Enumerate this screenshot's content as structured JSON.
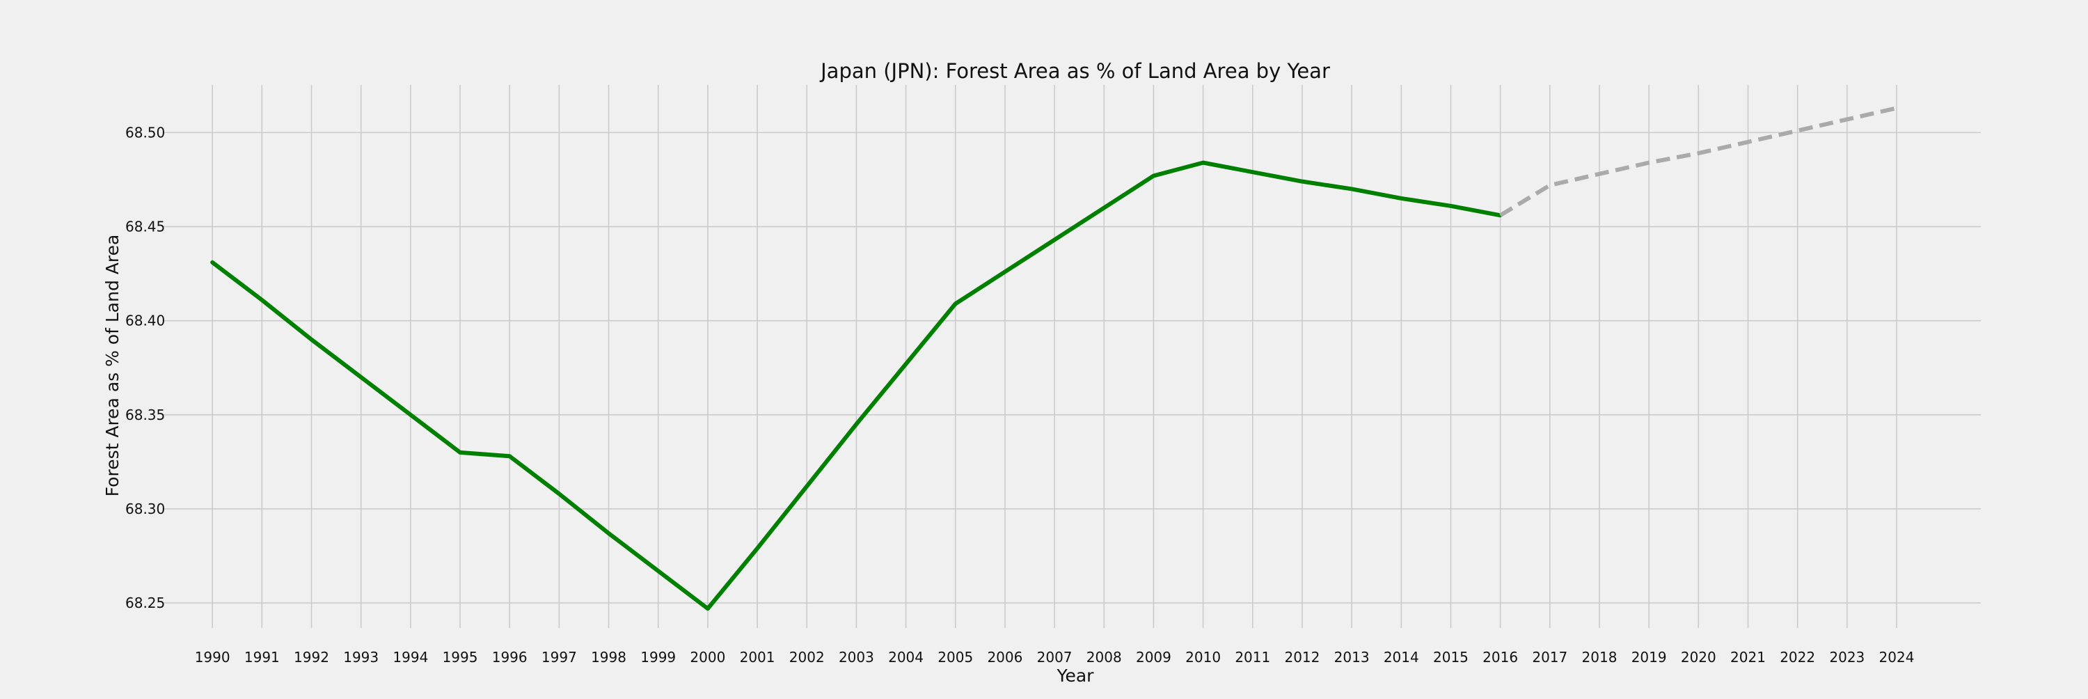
{
  "chart_data": {
    "type": "line",
    "title": "Japan (JPN): Forest Area as % of Land Area by Year",
    "xlabel": "Year",
    "ylabel": "Forest Area as % of Land Area",
    "x": [
      1990,
      1991,
      1992,
      1993,
      1994,
      1995,
      1996,
      1997,
      1998,
      1999,
      2000,
      2001,
      2002,
      2003,
      2004,
      2005,
      2006,
      2007,
      2008,
      2009,
      2010,
      2011,
      2012,
      2013,
      2014,
      2015,
      2016,
      2017,
      2018,
      2019,
      2020,
      2021,
      2022,
      2023,
      2024
    ],
    "x_tick_labels": [
      "1990",
      "1991",
      "1992",
      "1993",
      "1994",
      "1995",
      "1996",
      "1997",
      "1998",
      "1999",
      "2000",
      "2001",
      "2002",
      "2003",
      "2004",
      "2005",
      "2006",
      "2007",
      "2008",
      "2009",
      "2010",
      "2011",
      "2012",
      "2013",
      "2014",
      "2015",
      "2016",
      "2017",
      "2018",
      "2019",
      "2020",
      "2021",
      "2022",
      "2023",
      "2024"
    ],
    "y_ticks": [
      68.25,
      68.3,
      68.35,
      68.4,
      68.45,
      68.5
    ],
    "y_tick_labels": [
      "68.25",
      "68.30",
      "68.35",
      "68.40",
      "68.45",
      "68.50"
    ],
    "xlim": [
      1989,
      2025.7
    ],
    "ylim": [
      68.2367,
      68.5253
    ],
    "grid": true,
    "series": [
      {
        "style": "solid",
        "color": "#008000",
        "x": [
          1990,
          1991,
          1992,
          1993,
          1994,
          1995,
          1996,
          1997,
          1998,
          1999,
          2000,
          2001,
          2002,
          2003,
          2004,
          2005,
          2006,
          2007,
          2008,
          2009,
          2010,
          2011,
          2012,
          2013,
          2014,
          2015,
          2016
        ],
        "values": [
          68.431,
          68.411,
          68.39,
          68.37,
          68.35,
          68.33,
          68.328,
          68.308,
          68.287,
          68.267,
          68.247,
          68.279,
          68.312,
          68.345,
          68.377,
          68.409,
          68.426,
          68.443,
          68.46,
          68.477,
          68.484,
          68.479,
          68.474,
          68.47,
          68.465,
          68.461,
          68.456
        ]
      },
      {
        "style": "dashed",
        "color": "#aaaaaa",
        "x": [
          2016,
          2017,
          2018,
          2019,
          2020,
          2021,
          2022,
          2023,
          2024
        ],
        "values": [
          68.456,
          68.472,
          68.478,
          68.484,
          68.489,
          68.495,
          68.501,
          68.507,
          68.513
        ]
      }
    ],
    "colors": {
      "background": "#f0f0f0",
      "grid": "#cbcbcb",
      "text": "#111111"
    }
  }
}
